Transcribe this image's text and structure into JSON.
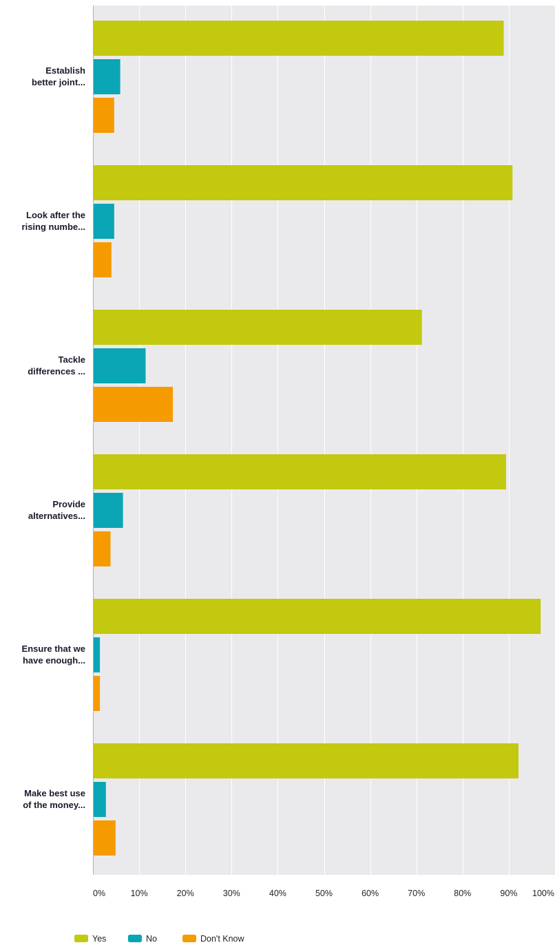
{
  "chart_data": {
    "type": "bar",
    "orientation": "horizontal",
    "categories": [
      "Establish better joint...",
      "Look after the rising numbe...",
      "Tackle differences ...",
      "Provide alternatives...",
      "Ensure that we have enough...",
      "Make best use of the money..."
    ],
    "category_lines": [
      [
        "Establish",
        "better joint..."
      ],
      [
        "Look after the",
        "rising numbe..."
      ],
      [
        "Tackle",
        "differences ..."
      ],
      [
        "Provide",
        "alternatives..."
      ],
      [
        "Ensure that we",
        "have enough..."
      ],
      [
        "Make best use",
        "of the money..."
      ]
    ],
    "series": [
      {
        "name": "Yes",
        "color": "#c2c90f",
        "values": [
          88.9,
          90.8,
          71.2,
          89.4,
          96.9,
          92.1
        ]
      },
      {
        "name": "No",
        "color": "#0aa6b5",
        "values": [
          5.9,
          4.6,
          11.4,
          6.5,
          1.5,
          2.8
        ]
      },
      {
        "name": "Don't Know",
        "color": "#f59b00",
        "values": [
          4.6,
          4.0,
          17.3,
          3.8,
          1.5,
          4.9
        ]
      }
    ],
    "x_ticks": [
      "0%",
      "10%",
      "20%",
      "30%",
      "40%",
      "50%",
      "60%",
      "70%",
      "80%",
      "90%",
      "100%"
    ],
    "xlim": [
      0,
      100
    ],
    "grid": true,
    "legend_position": "bottom-left",
    "plot_background": "#eaeaed",
    "grid_color": "#ffffff",
    "axis_color": "#b0b0b0"
  }
}
